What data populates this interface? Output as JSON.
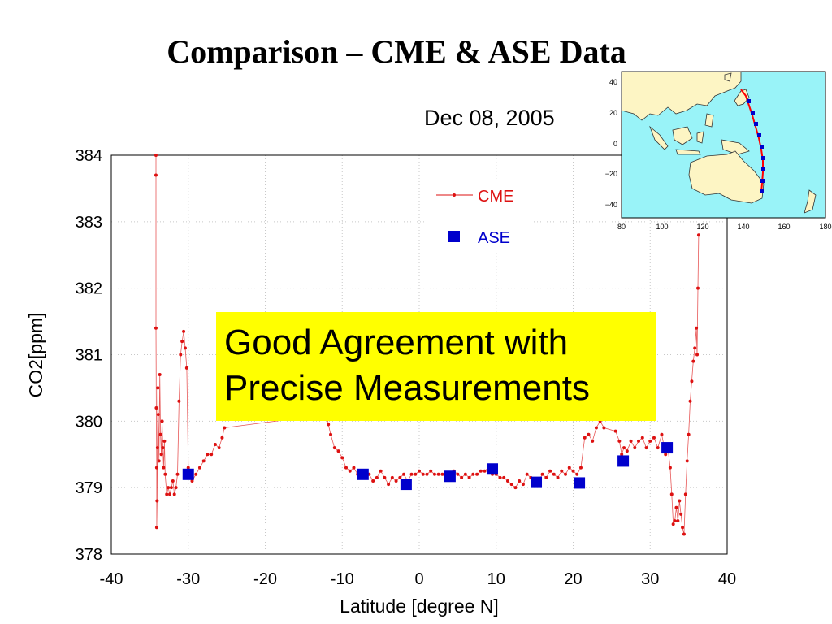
{
  "slide": {
    "title": "Comparison – CME & ASE Data",
    "subtitle": "Dec 08, 2005",
    "callout": [
      "Good Agreement with",
      "Precise Measurements"
    ]
  },
  "chart_data": {
    "type": "scatter",
    "xlabel": "Latitude [degree N]",
    "ylabel": "CO2[ppm]",
    "xlim": [
      -40,
      40
    ],
    "ylim": [
      378,
      384
    ],
    "xticks": [
      -40,
      -30,
      -20,
      -10,
      0,
      10,
      20,
      30,
      40
    ],
    "yticks": [
      378,
      379,
      380,
      381,
      382,
      383,
      384
    ],
    "grid": true,
    "legend_position": "top-center",
    "series": [
      {
        "name": "CME",
        "style": "line-with-dots",
        "color": "#dd1111",
        "points": [
          [
            -34.2,
            384.0
          ],
          [
            -34.2,
            383.7
          ],
          [
            -34.2,
            381.4
          ],
          [
            -34.15,
            380.2
          ],
          [
            -34.1,
            379.3
          ],
          [
            -34.1,
            378.4
          ],
          [
            -34.05,
            378.8
          ],
          [
            -34.0,
            379.6
          ],
          [
            -33.95,
            380.5
          ],
          [
            -33.9,
            380.1
          ],
          [
            -33.8,
            379.4
          ],
          [
            -33.7,
            380.7
          ],
          [
            -33.6,
            379.8
          ],
          [
            -33.5,
            379.5
          ],
          [
            -33.4,
            380.0
          ],
          [
            -33.3,
            379.6
          ],
          [
            -33.2,
            379.3
          ],
          [
            -33.1,
            379.7
          ],
          [
            -33.0,
            379.2
          ],
          [
            -32.8,
            378.9
          ],
          [
            -32.6,
            379.0
          ],
          [
            -32.4,
            378.9
          ],
          [
            -32.2,
            379.0
          ],
          [
            -32.0,
            379.1
          ],
          [
            -31.8,
            378.9
          ],
          [
            -31.6,
            379.0
          ],
          [
            -31.4,
            379.2
          ],
          [
            -31.2,
            380.3
          ],
          [
            -31.0,
            381.0
          ],
          [
            -30.8,
            381.2
          ],
          [
            -30.6,
            381.35
          ],
          [
            -30.4,
            381.1
          ],
          [
            -30.2,
            380.8
          ],
          [
            -30.0,
            379.3
          ],
          [
            -29.8,
            379.2
          ],
          [
            -29.5,
            379.1
          ],
          [
            -29.0,
            379.2
          ],
          [
            -28.5,
            379.3
          ],
          [
            -28.0,
            379.4
          ],
          [
            -27.5,
            379.5
          ],
          [
            -27.0,
            379.5
          ],
          [
            -26.5,
            379.65
          ],
          [
            -26.0,
            379.6
          ],
          [
            -25.6,
            379.75
          ],
          [
            -25.3,
            379.9
          ],
          [
            -12.0,
            380.1
          ],
          [
            -11.8,
            379.95
          ],
          [
            -11.5,
            379.8
          ],
          [
            -11.0,
            379.6
          ],
          [
            -10.5,
            379.55
          ],
          [
            -10.0,
            379.45
          ],
          [
            -9.5,
            379.3
          ],
          [
            -9.0,
            379.25
          ],
          [
            -8.5,
            379.3
          ],
          [
            -8.0,
            379.2
          ],
          [
            -7.5,
            379.2
          ],
          [
            -7.0,
            379.15
          ],
          [
            -6.5,
            379.2
          ],
          [
            -6.0,
            379.1
          ],
          [
            -5.5,
            379.15
          ],
          [
            -5.0,
            379.25
          ],
          [
            -4.5,
            379.15
          ],
          [
            -4.0,
            379.05
          ],
          [
            -3.5,
            379.15
          ],
          [
            -3.0,
            379.1
          ],
          [
            -2.5,
            379.15
          ],
          [
            -2.0,
            379.2
          ],
          [
            -1.5,
            379.1
          ],
          [
            -1.0,
            379.2
          ],
          [
            -0.5,
            379.2
          ],
          [
            0.0,
            379.25
          ],
          [
            0.5,
            379.2
          ],
          [
            1.0,
            379.2
          ],
          [
            1.5,
            379.25
          ],
          [
            2.0,
            379.2
          ],
          [
            2.5,
            379.2
          ],
          [
            3.0,
            379.2
          ],
          [
            3.5,
            379.15
          ],
          [
            4.0,
            379.2
          ],
          [
            4.5,
            379.25
          ],
          [
            5.0,
            379.2
          ],
          [
            5.5,
            379.15
          ],
          [
            6.0,
            379.2
          ],
          [
            6.5,
            379.15
          ],
          [
            7.0,
            379.2
          ],
          [
            7.5,
            379.2
          ],
          [
            8.0,
            379.25
          ],
          [
            8.5,
            379.25
          ],
          [
            9.0,
            379.3
          ],
          [
            9.5,
            379.2
          ],
          [
            10.0,
            379.2
          ],
          [
            10.5,
            379.15
          ],
          [
            11.0,
            379.15
          ],
          [
            11.5,
            379.1
          ],
          [
            12.0,
            379.05
          ],
          [
            12.5,
            379.0
          ],
          [
            13.0,
            379.1
          ],
          [
            13.5,
            379.05
          ],
          [
            14.0,
            379.2
          ],
          [
            14.5,
            379.15
          ],
          [
            15.0,
            379.1
          ],
          [
            15.5,
            379.1
          ],
          [
            16.0,
            379.2
          ],
          [
            16.5,
            379.15
          ],
          [
            17.0,
            379.25
          ],
          [
            17.5,
            379.2
          ],
          [
            18.0,
            379.15
          ],
          [
            18.5,
            379.25
          ],
          [
            19.0,
            379.2
          ],
          [
            19.5,
            379.3
          ],
          [
            20.0,
            379.25
          ],
          [
            20.5,
            379.2
          ],
          [
            21.0,
            379.3
          ],
          [
            21.5,
            379.75
          ],
          [
            22.0,
            379.8
          ],
          [
            22.5,
            379.7
          ],
          [
            23.0,
            379.9
          ],
          [
            23.5,
            380.0
          ],
          [
            24.0,
            379.9
          ],
          [
            25.5,
            379.85
          ],
          [
            26.0,
            379.7
          ],
          [
            26.3,
            379.5
          ],
          [
            26.6,
            379.6
          ],
          [
            27.0,
            379.55
          ],
          [
            27.5,
            379.7
          ],
          [
            28.0,
            379.6
          ],
          [
            28.5,
            379.7
          ],
          [
            29.0,
            379.75
          ],
          [
            29.5,
            379.6
          ],
          [
            30.0,
            379.7
          ],
          [
            30.5,
            379.75
          ],
          [
            31.0,
            379.6
          ],
          [
            31.5,
            379.8
          ],
          [
            32.0,
            379.5
          ],
          [
            32.3,
            379.6
          ],
          [
            32.6,
            379.3
          ],
          [
            32.8,
            378.9
          ],
          [
            33.0,
            378.45
          ],
          [
            33.2,
            378.5
          ],
          [
            33.4,
            378.7
          ],
          [
            33.6,
            378.5
          ],
          [
            33.8,
            378.8
          ],
          [
            34.0,
            378.6
          ],
          [
            34.2,
            378.4
          ],
          [
            34.4,
            378.3
          ],
          [
            34.6,
            378.9
          ],
          [
            34.8,
            379.4
          ],
          [
            35.0,
            379.8
          ],
          [
            35.2,
            380.3
          ],
          [
            35.4,
            380.6
          ],
          [
            35.6,
            380.9
          ],
          [
            35.8,
            381.1
          ],
          [
            36.0,
            381.4
          ],
          [
            36.1,
            381.0
          ],
          [
            36.2,
            382.0
          ],
          [
            36.3,
            382.8
          ]
        ]
      },
      {
        "name": "ASE",
        "style": "square-markers",
        "color": "#0000cc",
        "points": [
          [
            -30.0,
            379.2
          ],
          [
            -7.3,
            379.2
          ],
          [
            -1.7,
            379.05
          ],
          [
            4.0,
            379.17
          ],
          [
            9.5,
            379.28
          ],
          [
            15.2,
            379.08
          ],
          [
            20.8,
            379.07
          ],
          [
            26.5,
            379.4
          ],
          [
            32.2,
            379.6
          ]
        ]
      }
    ]
  },
  "inset_map": {
    "description_labels": {
      "xticks": [
        "80",
        "100",
        "120",
        "140",
        "160",
        "180"
      ],
      "yticks": [
        "40",
        "20",
        "0",
        "−20",
        "−40"
      ]
    },
    "ocean_color": "#99f3f8",
    "land_color": "#fdf5c4",
    "track_color": "#ff0000",
    "marker_color": "#0000cc"
  }
}
